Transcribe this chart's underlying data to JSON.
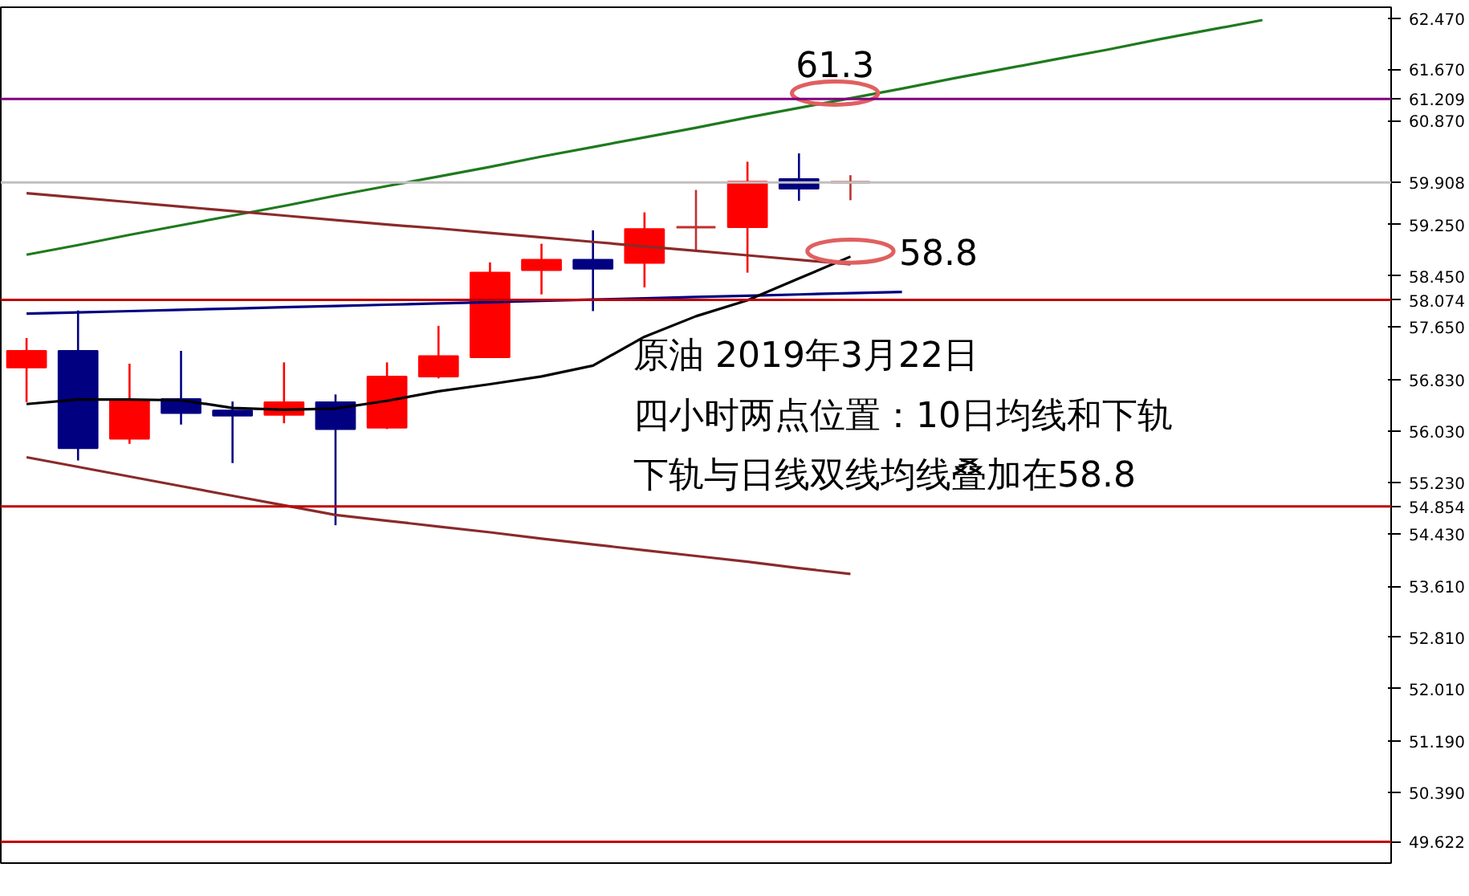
{
  "chart_data": {
    "type": "candlestick",
    "categories": [
      null,
      null,
      null,
      null,
      null,
      null,
      null,
      null,
      null,
      null,
      null,
      null,
      null,
      null,
      null,
      null,
      null,
      null,
      null,
      null,
      null,
      null,
      null,
      null,
      null,
      null,
      null
    ],
    "ohlc": [
      [
        57.02,
        57.48,
        56.48,
        57.28
      ],
      [
        57.28,
        57.91,
        55.57,
        55.76
      ],
      [
        55.91,
        57.08,
        55.83,
        56.51
      ],
      [
        56.53,
        57.28,
        56.13,
        56.31
      ],
      [
        56.35,
        56.49,
        55.53,
        56.27
      ],
      [
        56.28,
        57.1,
        56.15,
        56.48
      ],
      [
        56.48,
        56.6,
        54.56,
        56.06
      ],
      [
        56.08,
        57.1,
        56.06,
        56.88
      ],
      [
        56.88,
        57.67,
        56.85,
        57.2
      ],
      [
        57.18,
        58.66,
        57.17,
        58.5
      ],
      [
        58.54,
        58.95,
        58.16,
        58.7
      ],
      [
        58.7,
        59.16,
        57.9,
        58.56
      ],
      [
        58.65,
        59.44,
        58.27,
        59.18
      ],
      [
        59.21,
        59.79,
        58.84,
        59.21
      ],
      [
        59.21,
        60.23,
        58.5,
        59.92
      ],
      [
        59.96,
        60.36,
        59.62,
        59.81
      ],
      [
        59.91,
        60.02,
        59.63,
        59.91
      ],
      null,
      null,
      null,
      null,
      null,
      null,
      null,
      null,
      null,
      null
    ],
    "colors": [
      "#ff0000",
      "#000080",
      "#ff0000",
      "#000080",
      "#000080",
      "#ff0000",
      "#000080",
      "#ff0000",
      "#ff0000",
      "#ff0000",
      "#ff0000",
      "#000080",
      "#ff0000",
      "#c03030",
      "#ff0000",
      "#000080",
      "#c03030",
      null,
      null,
      null,
      null,
      null,
      null,
      null,
      null,
      null,
      null
    ],
    "series": [
      {
        "type": "line",
        "color": "#1e7a1e",
        "values": [
          58.78,
          58.93,
          59.09,
          59.24,
          59.39,
          59.54,
          59.7,
          59.85,
          60.0,
          60.15,
          60.31,
          60.46,
          60.61,
          60.76,
          60.92,
          61.07,
          61.22,
          61.37,
          61.53,
          61.68,
          61.83,
          61.98,
          62.14,
          62.29,
          62.44,
          null,
          null
        ]
      },
      {
        "type": "line",
        "color": "#8b2a2a",
        "values": [
          59.74,
          59.67,
          59.6,
          59.53,
          59.46,
          59.39,
          59.32,
          59.25,
          59.19,
          59.12,
          59.05,
          58.98,
          58.91,
          58.84,
          58.77,
          58.7,
          58.63,
          null,
          null,
          null,
          null,
          null,
          null,
          null,
          null,
          null,
          null
        ]
      },
      {
        "type": "line",
        "color": "#8b2a2a",
        "values": [
          55.62,
          55.47,
          55.32,
          55.17,
          55.02,
          54.87,
          54.72,
          54.63,
          54.54,
          54.45,
          54.35,
          54.26,
          54.17,
          54.08,
          53.99,
          53.89,
          53.8,
          null,
          null,
          null,
          null,
          null,
          null,
          null,
          null,
          null,
          null
        ]
      },
      {
        "type": "line",
        "color": "#000080",
        "values": [
          57.86,
          57.88,
          57.9,
          57.92,
          57.94,
          57.96,
          57.98,
          58.0,
          58.02,
          58.04,
          58.06,
          58.08,
          58.1,
          58.12,
          58.14,
          58.16,
          58.18,
          58.2,
          null,
          null,
          null,
          null,
          null,
          null,
          null,
          null,
          null
        ]
      },
      {
        "type": "line",
        "color": "#000000",
        "values": [
          56.45,
          56.52,
          56.52,
          56.51,
          56.39,
          56.36,
          56.38,
          56.5,
          56.65,
          56.76,
          56.88,
          57.05,
          57.5,
          57.82,
          58.07,
          58.41,
          58.75,
          null,
          null,
          null,
          null,
          null,
          null,
          null,
          null,
          null,
          null
        ]
      }
    ],
    "ylim": [
      49.29,
      62.64
    ],
    "yticks": [
      {
        "value": 62.47,
        "label": "62.470"
      },
      {
        "value": 61.67,
        "label": "61.670"
      },
      {
        "value": 60.87,
        "label": "60.870"
      },
      {
        "value": 59.25,
        "label": "59.250"
      },
      {
        "value": 58.45,
        "label": "58.450"
      },
      {
        "value": 57.65,
        "label": "57.650"
      },
      {
        "value": 56.83,
        "label": "56.830"
      },
      {
        "value": 56.03,
        "label": "56.030"
      },
      {
        "value": 55.23,
        "label": "55.230"
      },
      {
        "value": 54.43,
        "label": "54.430"
      },
      {
        "value": 53.61,
        "label": "53.610"
      },
      {
        "value": 52.81,
        "label": "52.810"
      },
      {
        "value": 52.01,
        "label": "52.010"
      },
      {
        "value": 51.19,
        "label": "51.190"
      },
      {
        "value": 50.39,
        "label": "50.390"
      }
    ],
    "tick_labels": "y",
    "grid": false,
    "ref_lines": [
      {
        "axis": "y",
        "value": 61.209,
        "label": "61.209",
        "color": "#800080"
      },
      {
        "axis": "y",
        "value": 59.908,
        "label": "59.908",
        "color": "#c0c0c0"
      },
      {
        "axis": "y",
        "value": 58.074,
        "label": "58.074",
        "color": "#c00000"
      },
      {
        "axis": "y",
        "value": 54.854,
        "label": "54.854",
        "color": "#c00000"
      },
      {
        "axis": "y",
        "value": 49.622,
        "label": "49.622",
        "color": "#c00000"
      }
    ],
    "annotations": [
      {
        "text": "61.3",
        "y": 61.3
      },
      "58.8",
      "原油 2019年3月22日",
      "四小时两点位置：10日均线和下轨",
      "下轨与日线双线均线叠加在58.8"
    ]
  }
}
